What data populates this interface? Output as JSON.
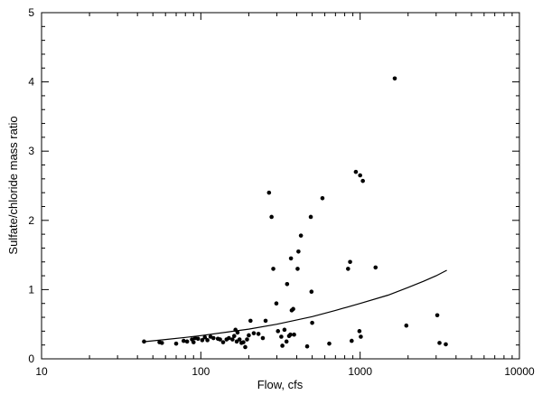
{
  "chart_data": {
    "type": "scatter",
    "title": "",
    "xlabel": "Flow, cfs",
    "ylabel": "Sulfate/chloride mass ratio",
    "xscale": "log",
    "xlim": [
      10,
      10000
    ],
    "ylim": [
      0,
      5
    ],
    "xticks": [
      10,
      100,
      1000,
      10000
    ],
    "xtick_labels": [
      "10",
      "100",
      "1000",
      "10000"
    ],
    "yticks": [
      0,
      1,
      2,
      3,
      4,
      5
    ],
    "ytick_labels": [
      "0",
      "1",
      "2",
      "3",
      "4",
      "5"
    ],
    "grid": false,
    "legend": "none",
    "colors": {
      "points": "#000000",
      "curve": "#000000",
      "axes": "#000000"
    },
    "series": [
      {
        "type": "scatter",
        "points": [
          [
            44,
            0.25
          ],
          [
            55,
            0.24
          ],
          [
            57,
            0.23
          ],
          [
            70,
            0.22
          ],
          [
            78,
            0.26
          ],
          [
            82,
            0.25
          ],
          [
            88,
            0.28
          ],
          [
            90,
            0.24
          ],
          [
            92,
            0.3
          ],
          [
            96,
            0.29
          ],
          [
            102,
            0.27
          ],
          [
            106,
            0.31
          ],
          [
            110,
            0.27
          ],
          [
            115,
            0.32
          ],
          [
            120,
            0.3
          ],
          [
            128,
            0.29
          ],
          [
            132,
            0.28
          ],
          [
            138,
            0.24
          ],
          [
            145,
            0.28
          ],
          [
            150,
            0.3
          ],
          [
            158,
            0.28
          ],
          [
            162,
            0.33
          ],
          [
            165,
            0.42
          ],
          [
            168,
            0.25
          ],
          [
            170,
            0.38
          ],
          [
            175,
            0.28
          ],
          [
            180,
            0.23
          ],
          [
            185,
            0.24
          ],
          [
            190,
            0.17
          ],
          [
            195,
            0.28
          ],
          [
            200,
            0.34
          ],
          [
            205,
            0.55
          ],
          [
            215,
            0.37
          ],
          [
            230,
            0.36
          ],
          [
            245,
            0.3
          ],
          [
            255,
            0.55
          ],
          [
            268,
            2.4
          ],
          [
            278,
            2.05
          ],
          [
            285,
            1.3
          ],
          [
            298,
            0.8
          ],
          [
            305,
            0.4
          ],
          [
            320,
            0.32
          ],
          [
            325,
            0.19
          ],
          [
            335,
            0.42
          ],
          [
            345,
            0.25
          ],
          [
            348,
            1.08
          ],
          [
            358,
            0.33
          ],
          [
            365,
            0.35
          ],
          [
            368,
            1.45
          ],
          [
            372,
            0.7
          ],
          [
            380,
            0.72
          ],
          [
            385,
            0.35
          ],
          [
            405,
            1.3
          ],
          [
            410,
            1.55
          ],
          [
            425,
            1.78
          ],
          [
            465,
            0.18
          ],
          [
            490,
            2.05
          ],
          [
            495,
            0.97
          ],
          [
            500,
            0.52
          ],
          [
            580,
            2.32
          ],
          [
            640,
            0.22
          ],
          [
            840,
            1.3
          ],
          [
            865,
            1.4
          ],
          [
            885,
            0.26
          ],
          [
            940,
            2.7
          ],
          [
            990,
            0.4
          ],
          [
            1000,
            2.65
          ],
          [
            1010,
            0.32
          ],
          [
            1040,
            2.57
          ],
          [
            1250,
            1.32
          ],
          [
            1650,
            4.05
          ],
          [
            1950,
            0.48
          ],
          [
            3050,
            0.63
          ],
          [
            3150,
            0.23
          ],
          [
            3450,
            0.21
          ]
        ]
      },
      {
        "type": "line",
        "points": [
          [
            45,
            0.25
          ],
          [
            60,
            0.28
          ],
          [
            80,
            0.31
          ],
          [
            100,
            0.335
          ],
          [
            150,
            0.39
          ],
          [
            200,
            0.43
          ],
          [
            300,
            0.5
          ],
          [
            500,
            0.61
          ],
          [
            700,
            0.7
          ],
          [
            1000,
            0.8
          ],
          [
            1500,
            0.92
          ],
          [
            2000,
            1.03
          ],
          [
            2500,
            1.12
          ],
          [
            3000,
            1.2
          ],
          [
            3500,
            1.28
          ]
        ]
      }
    ]
  }
}
